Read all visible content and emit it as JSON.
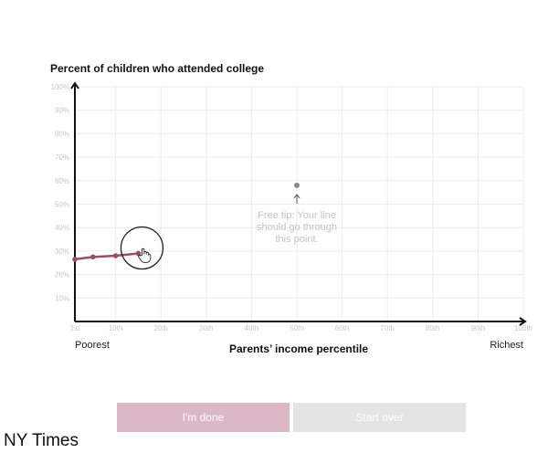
{
  "chart_data": {
    "type": "line",
    "title": "",
    "ylabel": "Percent of children who attended college",
    "xlabel": "Parents’ income percentile",
    "x_left_label": "Poorest",
    "x_right_label": "Richest",
    "ylim": [
      0,
      100
    ],
    "xlim": [
      1,
      100
    ],
    "y_ticks": [
      "10%",
      "20%",
      "30%",
      "40%",
      "50%",
      "60%",
      "70%",
      "80%",
      "90%",
      "100%"
    ],
    "y_tick_values": [
      10,
      20,
      30,
      40,
      50,
      60,
      70,
      80,
      90,
      100
    ],
    "x_ticks": [
      "1st",
      "10th",
      "20th",
      "30th",
      "40th",
      "50th",
      "60th",
      "70th",
      "80th",
      "90th",
      "100th"
    ],
    "x_tick_values": [
      1,
      10,
      20,
      30,
      40,
      50,
      60,
      70,
      80,
      90,
      100
    ],
    "grid": true,
    "series": [
      {
        "x": [
          1,
          5,
          10,
          15
        ],
        "y": [
          26.5,
          27.5,
          28,
          29
        ],
        "color": "#9b4d68"
      }
    ],
    "hint_point": {
      "x": 50,
      "y": 58,
      "color": "#888888"
    },
    "tip_lines": [
      "Free tip: Your line",
      "should go through",
      "this point."
    ]
  },
  "buttons": {
    "done": "I'm done",
    "start_over": "Start over"
  },
  "credit": "NY Times"
}
